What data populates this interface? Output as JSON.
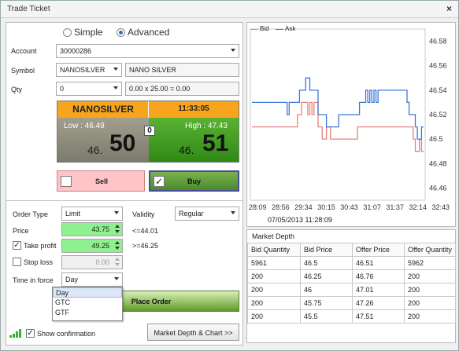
{
  "window": {
    "title": "Trade Ticket",
    "close_label": "×"
  },
  "mode": {
    "options": [
      "Simple",
      "Advanced"
    ],
    "selected": "Advanced"
  },
  "form": {
    "account_label": "Account",
    "account_value": "30000286",
    "symbol_label": "Symbol",
    "symbol_value": "NANOSILVER",
    "symbol_name": "NANO SILVER",
    "qty_label": "Qty",
    "qty_value": "0",
    "qty_calc": "0.00 x 25.00 = 0.00"
  },
  "quote": {
    "symbol": "NANOSILVER",
    "time": "11:33:05",
    "low_label": "Low : 46.49",
    "high_label": "High : 47.43",
    "spread": "0",
    "bid_prefix": "46.",
    "bid_big": "50",
    "ask_prefix": "46.",
    "ask_big": "51"
  },
  "actions": {
    "sell_label": "Sell",
    "buy_label": "Buy",
    "buy_checked": true,
    "sell_checked": false
  },
  "order": {
    "type_label": "Order Type",
    "type_value": "Limit",
    "validity_label": "Validity",
    "validity_value": "Regular",
    "price_label": "Price",
    "price_value": "43.75",
    "price_note": "<=44.01",
    "take_profit_label": "Take profit",
    "take_profit_value": "49.25",
    "take_profit_note": ">=46.25",
    "take_profit_checked": true,
    "stop_loss_label": "Stop loss",
    "stop_loss_value": "0.00",
    "stop_loss_checked": false,
    "tif_label": "Time in force",
    "tif_value": "Day",
    "tif_options": [
      "Day",
      "GTC",
      "GTF"
    ],
    "place_order_label": "Place Order"
  },
  "footer": {
    "show_confirmation_label": "Show confirmation",
    "show_confirmation_checked": true,
    "depth_button_label": "Market Depth & Chart >>"
  },
  "colors": {
    "bid": "#e8807c",
    "ask": "#3c78d8",
    "buy_green": "#3fa023",
    "sell_red": "#ff8a8a",
    "header_orange": "#f9a21a"
  },
  "chart_data": {
    "type": "line",
    "title": "",
    "xlabel": "",
    "ylabel": "",
    "ylim": [
      46.45,
      46.59
    ],
    "yticks": [
      "46.58",
      "46.56",
      "46.54",
      "46.52",
      "46.5",
      "46.48",
      "46.46"
    ],
    "xticks": [
      "28:09",
      "28:56",
      "29:34",
      "30:15",
      "30:43",
      "31:07",
      "31:37",
      "32:14",
      "32:43"
    ],
    "date_label": "07/05/2013 11:28:09",
    "legend": {
      "placement": "top-left",
      "entries": [
        "Bid",
        "Ask"
      ]
    },
    "series": [
      {
        "name": "Bid",
        "values": [
          46.51,
          46.51,
          46.51,
          46.51,
          46.51,
          46.51,
          46.51,
          46.51,
          46.51,
          46.51,
          46.51,
          46.51,
          46.51,
          46.51,
          46.51,
          46.51,
          46.51,
          46.51,
          46.51,
          46.51,
          46.51,
          46.51,
          46.52,
          46.52,
          46.53,
          46.53,
          46.53,
          46.52,
          46.53,
          46.52,
          46.53,
          46.53,
          46.51,
          46.51,
          46.5,
          46.5,
          46.51,
          46.51,
          46.5,
          46.5,
          46.5,
          46.5,
          46.5,
          46.5,
          46.5,
          46.5,
          46.5,
          46.5,
          46.5,
          46.5,
          46.5,
          46.51,
          46.51,
          46.51,
          46.51,
          46.51,
          46.51,
          46.51,
          46.51,
          46.51,
          46.51,
          46.51,
          46.51,
          46.51,
          46.51,
          46.51,
          46.51,
          46.51,
          46.51,
          46.51,
          46.51,
          46.51,
          46.51,
          46.51,
          46.51,
          46.51,
          46.51,
          46.51,
          46.5,
          46.49,
          46.49,
          46.5,
          46.49,
          46.49
        ]
      },
      {
        "name": "Ask",
        "values": [
          46.53,
          46.53,
          46.53,
          46.53,
          46.53,
          46.53,
          46.53,
          46.53,
          46.53,
          46.53,
          46.53,
          46.53,
          46.53,
          46.53,
          46.53,
          46.53,
          46.53,
          46.52,
          46.53,
          46.53,
          46.53,
          46.53,
          46.53,
          46.54,
          46.54,
          46.54,
          46.55,
          46.55,
          46.54,
          46.54,
          46.54,
          46.54,
          46.52,
          46.52,
          46.52,
          46.52,
          46.51,
          46.51,
          46.51,
          46.51,
          46.51,
          46.51,
          46.52,
          46.52,
          46.52,
          46.52,
          46.52,
          46.52,
          46.52,
          46.52,
          46.52,
          46.52,
          46.53,
          46.53,
          46.53,
          46.54,
          46.53,
          46.54,
          46.53,
          46.54,
          46.53,
          46.54,
          46.54,
          46.54,
          46.54,
          46.54,
          46.54,
          46.54,
          46.54,
          46.54,
          46.54,
          46.54,
          46.54,
          46.54,
          46.54,
          46.53,
          46.52,
          46.52,
          46.52,
          46.51,
          46.5,
          46.5,
          46.51,
          46.51
        ]
      }
    ]
  },
  "market_depth": {
    "title": "Market Depth",
    "headers": [
      "Bid Quantity",
      "Bid Price",
      "Offer Price",
      "Offer Quantity"
    ],
    "rows": [
      [
        "5961",
        "46.5",
        "46.51",
        "5962"
      ],
      [
        "200",
        "46.25",
        "46.76",
        "200"
      ],
      [
        "200",
        "46",
        "47.01",
        "200"
      ],
      [
        "200",
        "45.75",
        "47.26",
        "200"
      ],
      [
        "200",
        "45.5",
        "47.51",
        "200"
      ]
    ]
  }
}
